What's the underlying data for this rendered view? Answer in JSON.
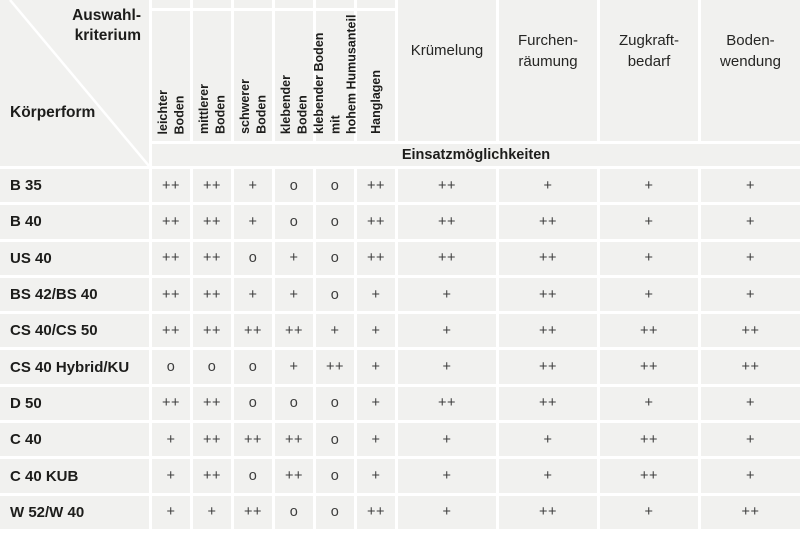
{
  "table": {
    "corner": {
      "top_label": "Auswahl-\nkriterium",
      "bottom_label": "Körperform"
    },
    "soil_columns": [
      "leichter\nBoden",
      "mittlerer\nBoden",
      "schwerer\nBoden",
      "klebender\nBoden",
      "klebender Boden mit\nhohem Humusanteil",
      "Hanglagen"
    ],
    "criteria_columns": [
      "Krümelung",
      "Furchen-\nräumung",
      "Zugkraft-\nbedarf",
      "Boden-\nwendung"
    ],
    "section_header": "Einsatzmöglichkeiten",
    "rating_symbols": [
      "++",
      "+",
      "o"
    ],
    "rows": [
      {
        "label": "B 35",
        "values": [
          "++",
          "++",
          "+",
          "o",
          "o",
          "++",
          "++",
          "+",
          "+",
          "+"
        ]
      },
      {
        "label": "B 40",
        "values": [
          "++",
          "++",
          "+",
          "o",
          "o",
          "++",
          "++",
          "++",
          "+",
          "+"
        ]
      },
      {
        "label": "US 40",
        "values": [
          "++",
          "++",
          "o",
          "+",
          "o",
          "++",
          "++",
          "++",
          "+",
          "+"
        ]
      },
      {
        "label": "BS 42/BS 40",
        "values": [
          "++",
          "++",
          "+",
          "+",
          "o",
          "+",
          "+",
          "++",
          "+",
          "+"
        ]
      },
      {
        "label": "CS 40/CS 50",
        "values": [
          "++",
          "++",
          "++",
          "++",
          "+",
          "+",
          "+",
          "++",
          "++",
          "++"
        ]
      },
      {
        "label": "CS 40 Hybrid/KU",
        "values": [
          "o",
          "o",
          "o",
          "+",
          "++",
          "+",
          "+",
          "++",
          "++",
          "++"
        ]
      },
      {
        "label": "D 50",
        "values": [
          "++",
          "++",
          "o",
          "o",
          "o",
          "+",
          "++",
          "++",
          "+",
          "+"
        ]
      },
      {
        "label": "C 40",
        "values": [
          "+",
          "++",
          "++",
          "++",
          "o",
          "+",
          "+",
          "+",
          "++",
          "+"
        ]
      },
      {
        "label": "C 40 KUB",
        "values": [
          "+",
          "++",
          "o",
          "++",
          "o",
          "+",
          "+",
          "+",
          "++",
          "+"
        ]
      },
      {
        "label": "W 52/W 40",
        "values": [
          "+",
          "+",
          "++",
          "o",
          "o",
          "++",
          "+",
          "++",
          "+",
          "++"
        ]
      }
    ],
    "colors": {
      "cell_bg": "#f1f1ef",
      "gutter": "#ffffff",
      "header_text": "#1d1d1b",
      "value_text": "#3d3d3d"
    }
  }
}
